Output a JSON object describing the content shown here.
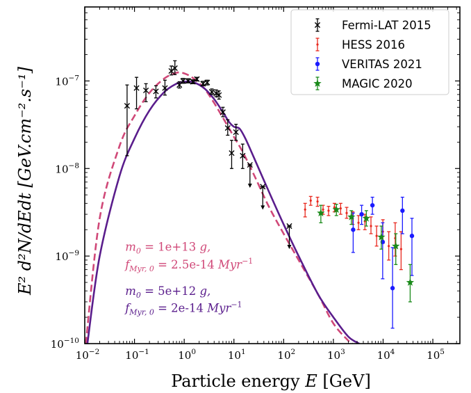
{
  "chart_data": {
    "type": "scatter",
    "title": "",
    "xlabel_prefix": "Particle energy ",
    "xlabel_var": "E",
    "xlabel_unit": "[GeV]",
    "ylabel": "E² d²N/dEdt [GeV.cm⁻².s⁻¹]",
    "xscale": "log",
    "yscale": "log",
    "xlim": [
      0.01,
      350000
    ],
    "ylim": [
      1e-10,
      7e-07
    ],
    "x_ticks": [
      {
        "value": 0.01,
        "base": "10",
        "exp": "−2"
      },
      {
        "value": 0.1,
        "base": "10",
        "exp": "−1"
      },
      {
        "value": 1,
        "base": "10",
        "exp": "0"
      },
      {
        "value": 10,
        "base": "10",
        "exp": "1"
      },
      {
        "value": 100,
        "base": "10",
        "exp": "2"
      },
      {
        "value": 1000,
        "base": "10",
        "exp": "3"
      },
      {
        "value": 10000,
        "base": "10",
        "exp": "4"
      },
      {
        "value": 100000,
        "base": "10",
        "exp": "5"
      }
    ],
    "y_ticks": [
      {
        "value": 1e-10,
        "base": "10",
        "exp": "−10"
      },
      {
        "value": 1e-09,
        "base": "10",
        "exp": "−9"
      },
      {
        "value": 1e-08,
        "base": "10",
        "exp": "−8"
      },
      {
        "value": 1e-07,
        "base": "10",
        "exp": "−7"
      }
    ],
    "legend_position": "top-right",
    "series": [
      {
        "name": "Fermi-LAT 2015",
        "color": "#000000",
        "marker": "x",
        "points": [
          {
            "x": 0.071,
            "y": 5.2e-08,
            "ylo": 1.4e-08,
            "yhi": 9e-08
          },
          {
            "x": 0.11,
            "y": 8.3e-08,
            "ylo": 4.8e-08,
            "yhi": 1.1e-07
          },
          {
            "x": 0.17,
            "y": 7.8e-08,
            "ylo": 5.8e-08,
            "yhi": 9.3e-08
          },
          {
            "x": 0.27,
            "y": 7.6e-08,
            "ylo": 6.4e-08,
            "yhi": 8.8e-08
          },
          {
            "x": 0.41,
            "y": 8.3e-08,
            "ylo": 6.9e-08,
            "yhi": 1.02e-07
          },
          {
            "x": 0.55,
            "y": 1.3e-07,
            "ylo": 1.17e-07,
            "yhi": 1.48e-07
          },
          {
            "x": 0.65,
            "y": 1.4e-07,
            "ylo": 1.18e-07,
            "yhi": 1.7e-07
          },
          {
            "x": 0.8,
            "y": 9e-08,
            "ylo": 8.3e-08,
            "yhi": 9.8e-08
          },
          {
            "x": 0.95,
            "y": 1e-07,
            "ylo": 9.4e-08,
            "yhi": 1.07e-07
          },
          {
            "x": 1.2,
            "y": 1e-07,
            "ylo": 9.5e-08,
            "yhi": 1.06e-07
          },
          {
            "x": 1.5,
            "y": 9.8e-08,
            "ylo": 9.3e-08,
            "yhi": 1.03e-07
          },
          {
            "x": 1.8,
            "y": 1.05e-07,
            "ylo": 1e-07,
            "yhi": 1.1e-07
          },
          {
            "x": 2.4,
            "y": 9.3e-08,
            "ylo": 8.8e-08,
            "yhi": 9.9e-08
          },
          {
            "x": 2.9,
            "y": 9.6e-08,
            "ylo": 9e-08,
            "yhi": 1.02e-07
          },
          {
            "x": 3.6,
            "y": 7.5e-08,
            "ylo": 7e-08,
            "yhi": 8.1e-08
          },
          {
            "x": 4.4,
            "y": 7.2e-08,
            "ylo": 6.6e-08,
            "yhi": 7.9e-08
          },
          {
            "x": 5.0,
            "y": 6.9e-08,
            "ylo": 6.2e-08,
            "yhi": 7.7e-08
          },
          {
            "x": 6.0,
            "y": 4.4e-08,
            "ylo": 3.9e-08,
            "yhi": 5e-08
          },
          {
            "x": 7.5,
            "y": 2.9e-08,
            "ylo": 2.4e-08,
            "yhi": 3.6e-08
          },
          {
            "x": 9.0,
            "y": 1.5e-08,
            "ylo": 1e-08,
            "yhi": 2.1e-08
          },
          {
            "x": 11.0,
            "y": 2.6e-08,
            "ylo": 2.1e-08,
            "yhi": 3.2e-08
          },
          {
            "x": 15.0,
            "y": 1.4e-08,
            "ylo": 1e-08,
            "yhi": 1.9e-08
          },
          {
            "x": 21.0,
            "y": 1.1e-08,
            "upper_limit": true
          },
          {
            "x": 38.0,
            "y": 6.2e-09,
            "upper_limit": true
          },
          {
            "x": 130.0,
            "y": 2.2e-09,
            "upper_limit": true
          }
        ]
      },
      {
        "name": "HESS 2016",
        "color": "#e8281e",
        "marker": "dot",
        "points": [
          {
            "x": 270,
            "y": 3.4e-09,
            "ylo": 2.8e-09,
            "yhi": 4e-09
          },
          {
            "x": 350,
            "y": 4.3e-09,
            "ylo": 3.8e-09,
            "yhi": 4.8e-09
          },
          {
            "x": 480,
            "y": 4.2e-09,
            "ylo": 3.7e-09,
            "yhi": 4.7e-09
          },
          {
            "x": 620,
            "y": 3.4e-09,
            "ylo": 3e-09,
            "yhi": 3.8e-09
          },
          {
            "x": 800,
            "y": 3.3e-09,
            "ylo": 2.9e-09,
            "yhi": 3.7e-09
          },
          {
            "x": 1050,
            "y": 3.6e-09,
            "ylo": 3.2e-09,
            "yhi": 4e-09
          },
          {
            "x": 1400,
            "y": 3.5e-09,
            "ylo": 3e-09,
            "yhi": 4e-09
          },
          {
            "x": 1850,
            "y": 3.1e-09,
            "ylo": 2.7e-09,
            "yhi": 3.6e-09
          },
          {
            "x": 2450,
            "y": 2.7e-09,
            "ylo": 2.3e-09,
            "yhi": 3.2e-09
          },
          {
            "x": 3200,
            "y": 2.4e-09,
            "ylo": 2e-09,
            "yhi": 2.9e-09
          },
          {
            "x": 4300,
            "y": 2.5e-09,
            "ylo": 2e-09,
            "yhi": 3e-09
          },
          {
            "x": 5700,
            "y": 2.2e-09,
            "ylo": 1.8e-09,
            "yhi": 2.8e-09
          },
          {
            "x": 7400,
            "y": 1.7e-09,
            "ylo": 1.3e-09,
            "yhi": 2.2e-09
          },
          {
            "x": 9900,
            "y": 1.9e-09,
            "ylo": 1.4e-09,
            "yhi": 2.6e-09
          },
          {
            "x": 13000,
            "y": 1.3e-09,
            "ylo": 9e-10,
            "yhi": 1.9e-09
          },
          {
            "x": 17500,
            "y": 1.6e-09,
            "ylo": 1e-09,
            "yhi": 2.4e-09
          },
          {
            "x": 23000,
            "y": 1.2e-09,
            "ylo": 7e-10,
            "yhi": 1.9e-09
          }
        ]
      },
      {
        "name": "VERITAS 2021",
        "color": "#1a1aff",
        "marker": "circle",
        "points": [
          {
            "x": 2500,
            "y": 2e-09,
            "ylo": 1.1e-09,
            "yhi": 3.1e-09
          },
          {
            "x": 3700,
            "y": 3e-09,
            "ylo": 2.3e-09,
            "yhi": 3.8e-09
          },
          {
            "x": 6100,
            "y": 3.8e-09,
            "ylo": 3e-09,
            "yhi": 4.7e-09
          },
          {
            "x": 9800,
            "y": 1.45e-09,
            "ylo": 5.5e-10,
            "yhi": 2.4e-09
          },
          {
            "x": 15500,
            "y": 4.3e-10,
            "ylo": 1.5e-10,
            "yhi": 1.25e-09
          },
          {
            "x": 24500,
            "y": 3.3e-09,
            "ylo": 1.8e-09,
            "yhi": 4.7e-09
          },
          {
            "x": 38000,
            "y": 1.7e-09,
            "ylo": 6e-10,
            "yhi": 2.7e-09
          }
        ]
      },
      {
        "name": "MAGIC 2020",
        "color": "#1a8a1a",
        "marker": "star",
        "points": [
          {
            "x": 560,
            "y": 3.1e-09,
            "ylo": 2.4e-09,
            "yhi": 3.8e-09
          },
          {
            "x": 1150,
            "y": 3.4e-09,
            "ylo": 2.9e-09,
            "yhi": 3.9e-09
          },
          {
            "x": 2300,
            "y": 2.8e-09,
            "ylo": 2.3e-09,
            "yhi": 3.3e-09
          },
          {
            "x": 4600,
            "y": 2.7e-09,
            "ylo": 2.2e-09,
            "yhi": 3.3e-09
          },
          {
            "x": 9200,
            "y": 1.65e-09,
            "ylo": 1.2e-09,
            "yhi": 2.2e-09
          },
          {
            "x": 18000,
            "y": 1.3e-09,
            "ylo": 8e-10,
            "yhi": 1.8e-09
          },
          {
            "x": 35000,
            "y": 5e-10,
            "ylo": 3e-10,
            "yhi": 8e-10
          }
        ]
      }
    ],
    "curves": [
      {
        "id": "model-dashed",
        "color": "#d04878",
        "style": "dashed",
        "points": [
          [
            0.0105,
            1e-10
          ],
          [
            0.02,
            2.7e-09
          ],
          [
            0.05,
            1.8e-08
          ],
          [
            0.1,
            4e-08
          ],
          [
            0.2,
            7.3e-08
          ],
          [
            0.4,
            1.07e-07
          ],
          [
            0.7,
            1.24e-07
          ],
          [
            1.0,
            1.22e-07
          ],
          [
            1.5,
            1.08e-07
          ],
          [
            2.5,
            8.3e-08
          ],
          [
            4.0,
            5.6e-08
          ],
          [
            6.0,
            3.8e-08
          ],
          [
            10,
            2.3e-08
          ],
          [
            15,
            1.55e-08
          ],
          [
            25,
            8.6e-09
          ],
          [
            50,
            3.7e-09
          ],
          [
            100,
            1.8e-09
          ],
          [
            200,
            9e-10
          ],
          [
            500,
            3.6e-10
          ],
          [
            1000,
            1.7e-10
          ],
          [
            2000,
            1.08e-10
          ],
          [
            2400,
            1e-10
          ]
        ]
      },
      {
        "id": "model-solid",
        "color": "#5a1d8c",
        "style": "solid",
        "points": [
          [
            0.0113,
            1e-10
          ],
          [
            0.02,
            1e-09
          ],
          [
            0.05,
            8.2e-09
          ],
          [
            0.1,
            2.2e-08
          ],
          [
            0.2,
            4.6e-08
          ],
          [
            0.4,
            7.5e-08
          ],
          [
            0.7,
            9.3e-08
          ],
          [
            1.0,
            9.8e-08
          ],
          [
            1.5,
            9.7e-08
          ],
          [
            2.5,
            8.3e-08
          ],
          [
            4.0,
            6.2e-08
          ],
          [
            6.0,
            4.4e-08
          ],
          [
            8.0,
            3.4e-08
          ],
          [
            10,
            3e-08
          ],
          [
            13,
            2.85e-08
          ],
          [
            17,
            2.2e-08
          ],
          [
            25,
            1.35e-08
          ],
          [
            50,
            5.5e-09
          ],
          [
            100,
            2.3e-09
          ],
          [
            200,
            1e-09
          ],
          [
            500,
            3.6e-10
          ],
          [
            1000,
            2e-10
          ],
          [
            2000,
            1.2e-10
          ],
          [
            3300,
            1e-10
          ]
        ]
      }
    ],
    "annotations": [
      {
        "id": "annot-dashed-m0",
        "color": "#d04878",
        "sym": "m",
        "sub": "0",
        "rest": " = 1e+13 ",
        "unit": "g,",
        "x": 0.065,
        "y": 1.15e-09
      },
      {
        "id": "annot-dashed-f",
        "color": "#d04878",
        "sym": "f",
        "sub": "Myr, 0",
        "rest": " = 2.5e-14 ",
        "unit": "Myr",
        "sup": "−1",
        "x": 0.065,
        "y": 7.2e-10
      },
      {
        "id": "annot-solid-m0",
        "color": "#5a1d8c",
        "sym": "m",
        "sub": "0",
        "rest": " = 5e+12 ",
        "unit": "g,",
        "x": 0.065,
        "y": 3.6e-10
      },
      {
        "id": "annot-solid-f",
        "color": "#5a1d8c",
        "sym": "f",
        "sub": "Myr, 0",
        "rest": " = 2e-14 ",
        "unit": "Myr",
        "sup": "−1",
        "x": 0.065,
        "y": 2.3e-10
      }
    ]
  }
}
